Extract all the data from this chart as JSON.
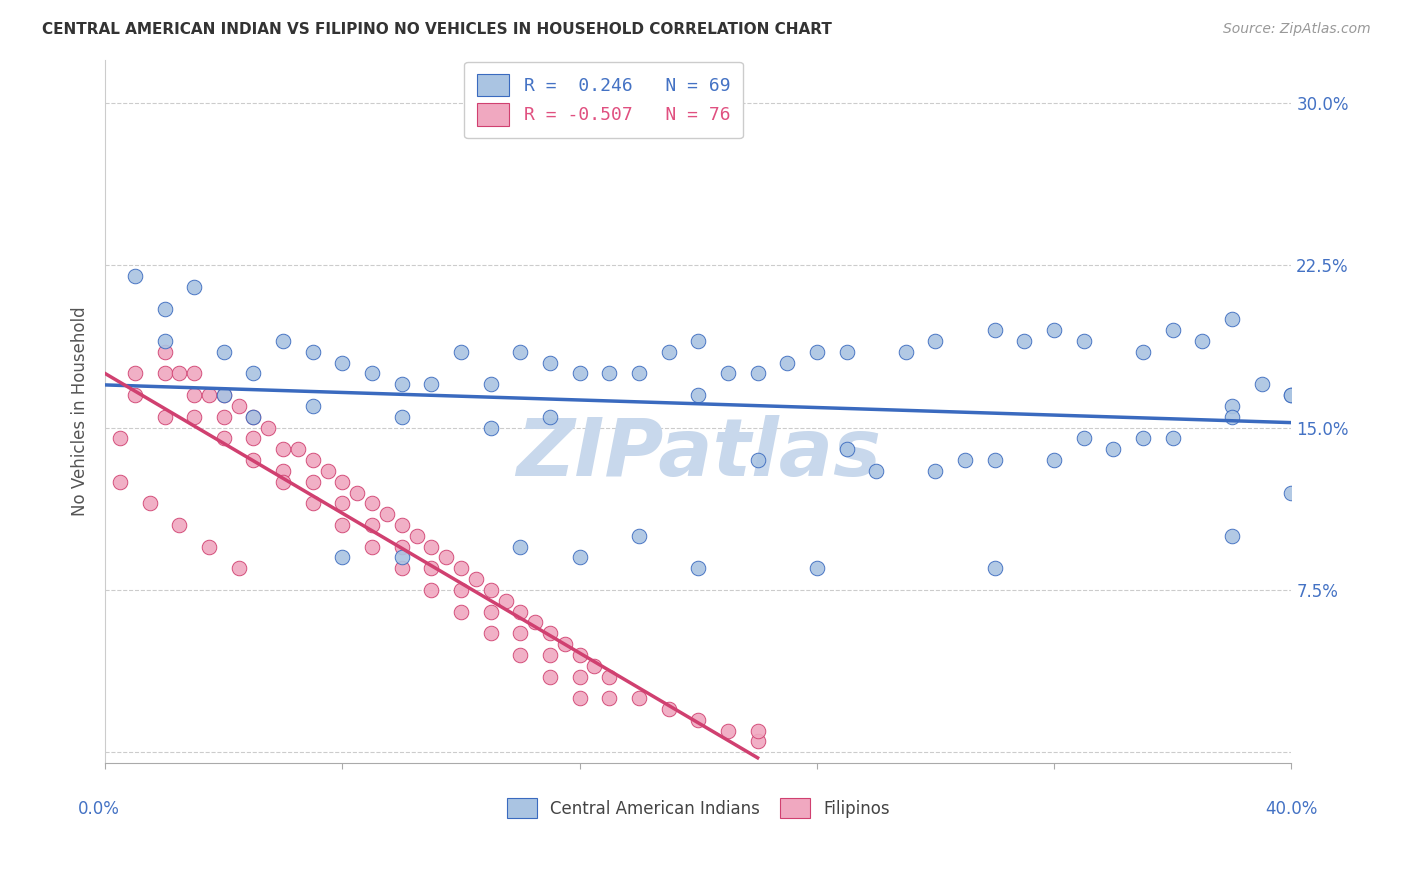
{
  "title": "CENTRAL AMERICAN INDIAN VS FILIPINO NO VEHICLES IN HOUSEHOLD CORRELATION CHART",
  "source": "Source: ZipAtlas.com",
  "ylabel": "No Vehicles in Household",
  "yticks": [
    0.0,
    0.075,
    0.15,
    0.225,
    0.3
  ],
  "ytick_labels": [
    "",
    "7.5%",
    "15.0%",
    "22.5%",
    "30.0%"
  ],
  "xlim": [
    0.0,
    0.4
  ],
  "ylim": [
    -0.005,
    0.32
  ],
  "legend_r1": "R =  0.246",
  "legend_n1": "N = 69",
  "legend_r2": "R = -0.507",
  "legend_n2": "N = 76",
  "color_blue": "#aac4e2",
  "color_pink": "#f0a8c0",
  "color_blue_line": "#3a6abf",
  "color_pink_line": "#d04070",
  "color_blue_text": "#4472c4",
  "color_pink_text": "#e05080",
  "watermark": "ZIPatlas",
  "watermark_color": "#c8d8ec",
  "background_color": "#ffffff",
  "grid_color": "#cccccc",
  "blue_scatter_x": [
    0.02,
    0.03,
    0.04,
    0.01,
    0.02,
    0.04,
    0.05,
    0.06,
    0.05,
    0.07,
    0.08,
    0.07,
    0.09,
    0.1,
    0.11,
    0.12,
    0.1,
    0.13,
    0.14,
    0.13,
    0.15,
    0.16,
    0.15,
    0.17,
    0.18,
    0.19,
    0.2,
    0.2,
    0.21,
    0.22,
    0.23,
    0.24,
    0.25,
    0.27,
    0.28,
    0.3,
    0.31,
    0.32,
    0.33,
    0.35,
    0.36,
    0.37,
    0.38,
    0.39,
    0.4,
    0.28,
    0.3,
    0.33,
    0.35,
    0.38,
    0.4,
    0.26,
    0.29,
    0.32,
    0.34,
    0.36,
    0.38,
    0.22,
    0.25,
    0.18,
    0.08,
    0.1,
    0.14,
    0.16,
    0.2,
    0.24,
    0.3,
    0.38,
    0.4
  ],
  "blue_scatter_y": [
    0.205,
    0.215,
    0.185,
    0.22,
    0.19,
    0.165,
    0.175,
    0.19,
    0.155,
    0.185,
    0.18,
    0.16,
    0.175,
    0.17,
    0.17,
    0.185,
    0.155,
    0.17,
    0.185,
    0.15,
    0.18,
    0.175,
    0.155,
    0.175,
    0.175,
    0.185,
    0.19,
    0.165,
    0.175,
    0.175,
    0.18,
    0.185,
    0.185,
    0.185,
    0.19,
    0.195,
    0.19,
    0.195,
    0.19,
    0.185,
    0.195,
    0.19,
    0.2,
    0.17,
    0.165,
    0.13,
    0.135,
    0.145,
    0.145,
    0.16,
    0.165,
    0.13,
    0.135,
    0.135,
    0.14,
    0.145,
    0.155,
    0.135,
    0.14,
    0.1,
    0.09,
    0.09,
    0.095,
    0.09,
    0.085,
    0.085,
    0.085,
    0.1,
    0.12
  ],
  "pink_scatter_x": [
    0.005,
    0.01,
    0.01,
    0.02,
    0.02,
    0.02,
    0.025,
    0.03,
    0.03,
    0.03,
    0.035,
    0.04,
    0.04,
    0.04,
    0.045,
    0.05,
    0.05,
    0.05,
    0.055,
    0.06,
    0.06,
    0.06,
    0.065,
    0.07,
    0.07,
    0.07,
    0.075,
    0.08,
    0.08,
    0.08,
    0.085,
    0.09,
    0.09,
    0.09,
    0.095,
    0.1,
    0.1,
    0.1,
    0.105,
    0.11,
    0.11,
    0.11,
    0.115,
    0.12,
    0.12,
    0.12,
    0.125,
    0.13,
    0.13,
    0.13,
    0.135,
    0.14,
    0.14,
    0.14,
    0.145,
    0.15,
    0.15,
    0.15,
    0.155,
    0.16,
    0.16,
    0.16,
    0.165,
    0.17,
    0.17,
    0.18,
    0.19,
    0.2,
    0.21,
    0.22,
    0.005,
    0.015,
    0.025,
    0.035,
    0.045,
    0.22
  ],
  "pink_scatter_y": [
    0.145,
    0.175,
    0.165,
    0.185,
    0.175,
    0.155,
    0.175,
    0.175,
    0.165,
    0.155,
    0.165,
    0.165,
    0.155,
    0.145,
    0.16,
    0.155,
    0.145,
    0.135,
    0.15,
    0.14,
    0.13,
    0.125,
    0.14,
    0.135,
    0.125,
    0.115,
    0.13,
    0.125,
    0.115,
    0.105,
    0.12,
    0.115,
    0.105,
    0.095,
    0.11,
    0.105,
    0.095,
    0.085,
    0.1,
    0.095,
    0.085,
    0.075,
    0.09,
    0.085,
    0.075,
    0.065,
    0.08,
    0.075,
    0.065,
    0.055,
    0.07,
    0.065,
    0.055,
    0.045,
    0.06,
    0.055,
    0.045,
    0.035,
    0.05,
    0.045,
    0.035,
    0.025,
    0.04,
    0.035,
    0.025,
    0.025,
    0.02,
    0.015,
    0.01,
    0.005,
    0.125,
    0.115,
    0.105,
    0.095,
    0.085,
    0.01
  ]
}
